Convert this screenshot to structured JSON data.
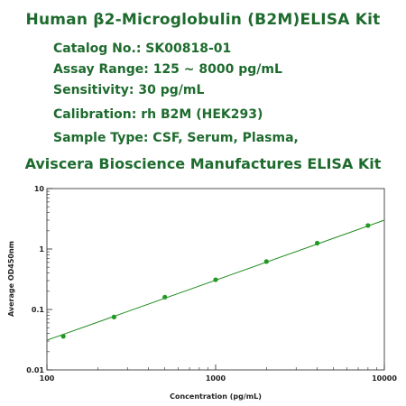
{
  "header": {
    "title": "Human β2-Microglobulin (B2M)ELISA Kit",
    "specs": {
      "catalog": "Catalog No.: SK00818-01",
      "range": "Assay Range: 125 ~ 8000 pg/mL",
      "sensitivity": "Sensitivity: 30 pg/mL",
      "calibration": "Calibration: rh B2M (HEK293)",
      "sample": "Sample Type: CSF, Serum, Plasma,"
    },
    "banner": "Aviscera Bioscience Manufactures ELISA Kit"
  },
  "colors": {
    "text_green": "#1e6b2e",
    "curve": "#1f8a1f",
    "points": "#1f9a1f"
  },
  "chart_data": {
    "type": "scatter",
    "title": "",
    "xlabel": "Concentration (pg/mL)",
    "ylabel": "Average OD450nm",
    "x_scale": "log",
    "y_scale": "log",
    "xlim": [
      100,
      10000
    ],
    "ylim": [
      0.01,
      10
    ],
    "x_ticks": [
      "100",
      "1000",
      "10000"
    ],
    "y_ticks": [
      "0.01",
      "0.1",
      "1",
      "10"
    ],
    "grid": false,
    "series": [
      {
        "x": [
          125,
          250,
          500,
          1000,
          2000,
          4000,
          8000
        ],
        "y": [
          0.036,
          0.075,
          0.16,
          0.31,
          0.62,
          1.25,
          2.45
        ]
      }
    ],
    "fit_line": {
      "x": [
        100,
        10000
      ],
      "y": [
        0.031,
        3.0
      ]
    }
  }
}
